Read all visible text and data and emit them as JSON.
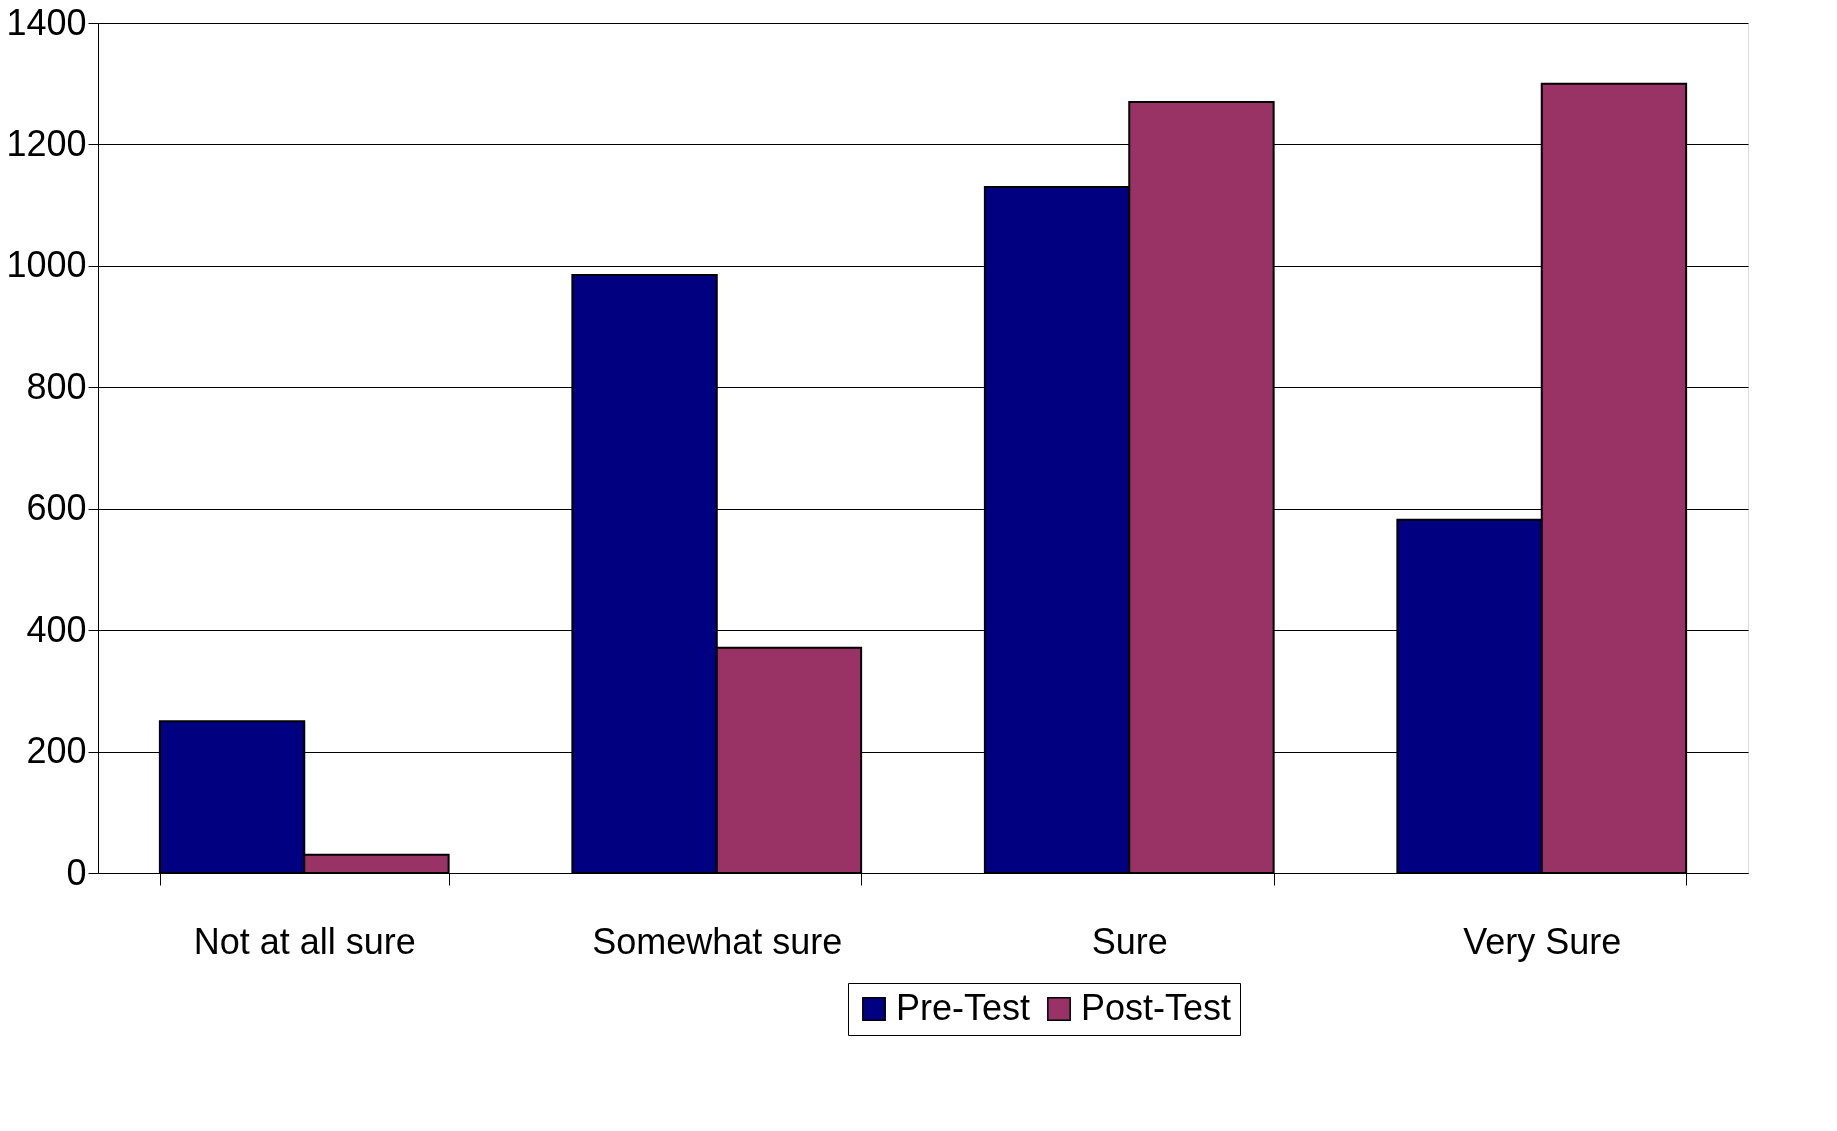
{
  "chart_data": {
    "type": "bar",
    "categories": [
      "Not at all sure",
      "Somewhat sure",
      "Sure",
      "Very Sure"
    ],
    "series": [
      {
        "name": "Pre-Test",
        "color": "#000080",
        "values": [
          250,
          985,
          1130,
          582
        ]
      },
      {
        "name": "Post-Test",
        "color": "#993366",
        "values": [
          30,
          371,
          1270,
          1300
        ]
      }
    ],
    "ylim": [
      0,
      1400
    ],
    "yticks": [
      0,
      200,
      400,
      600,
      800,
      1000,
      1200,
      1400
    ],
    "grid": "y",
    "legend": "bottom"
  }
}
